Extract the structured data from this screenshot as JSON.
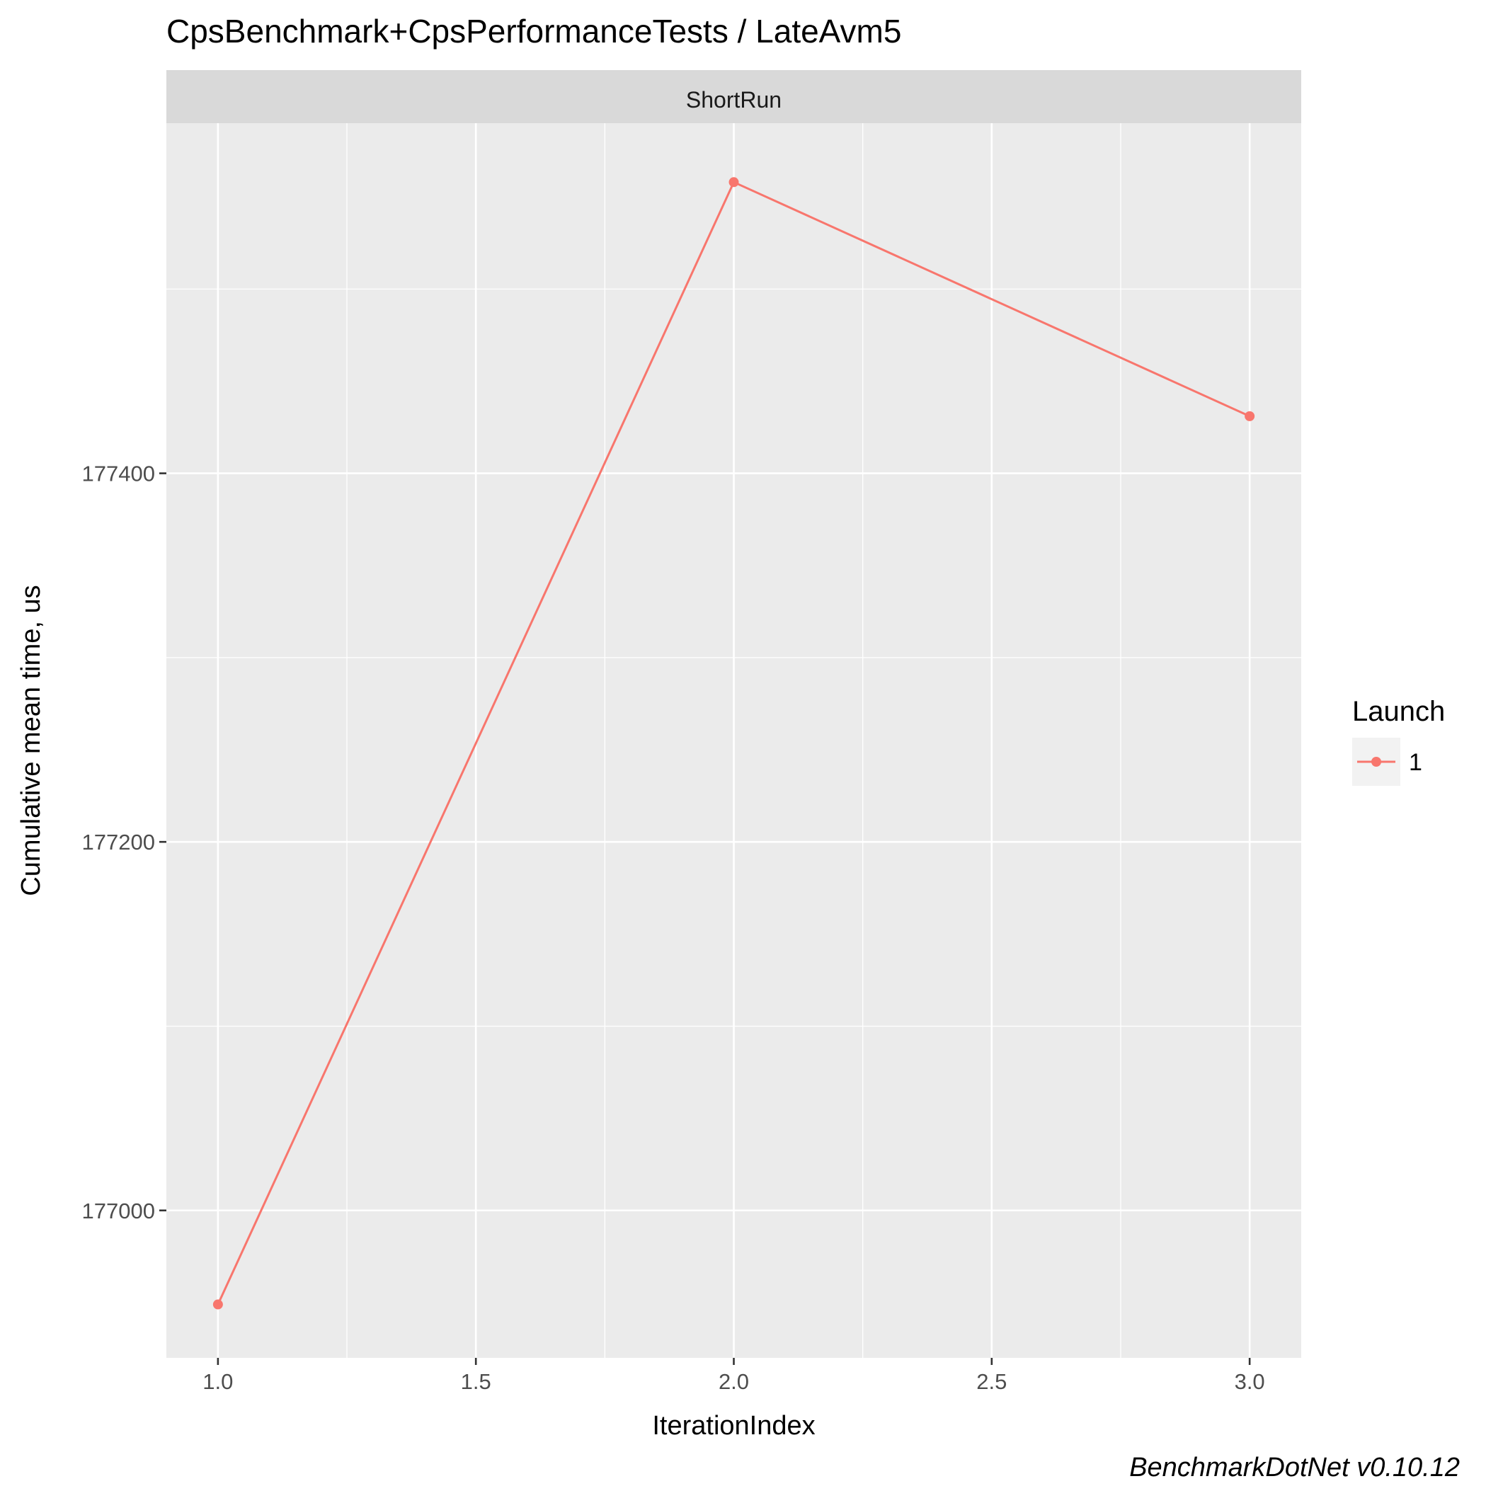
{
  "chart_data": {
    "type": "line",
    "title": "CpsBenchmark+CpsPerformanceTests / LateAvm5",
    "facet_label": "ShortRun",
    "xlabel": "IterationIndex",
    "ylabel": "Cumulative mean time, us",
    "x_ticks": [
      "1.0",
      "1.5",
      "2.0",
      "2.5",
      "3.0"
    ],
    "x_tick_values": [
      1.0,
      1.5,
      2.0,
      2.5,
      3.0
    ],
    "y_ticks": [
      "177000",
      "177200",
      "177400"
    ],
    "y_tick_values": [
      177000,
      177200,
      177400
    ],
    "xlim": [
      0.9,
      3.1
    ],
    "ylim": [
      176920,
      177590
    ],
    "grid": true,
    "legend": {
      "title": "Launch",
      "position": "right"
    },
    "series": [
      {
        "name": "1",
        "color": "#F8766D",
        "x": [
          1,
          2,
          3
        ],
        "y": [
          176949,
          177558,
          177431
        ]
      }
    ],
    "caption": "BenchmarkDotNet v0.10.12"
  }
}
